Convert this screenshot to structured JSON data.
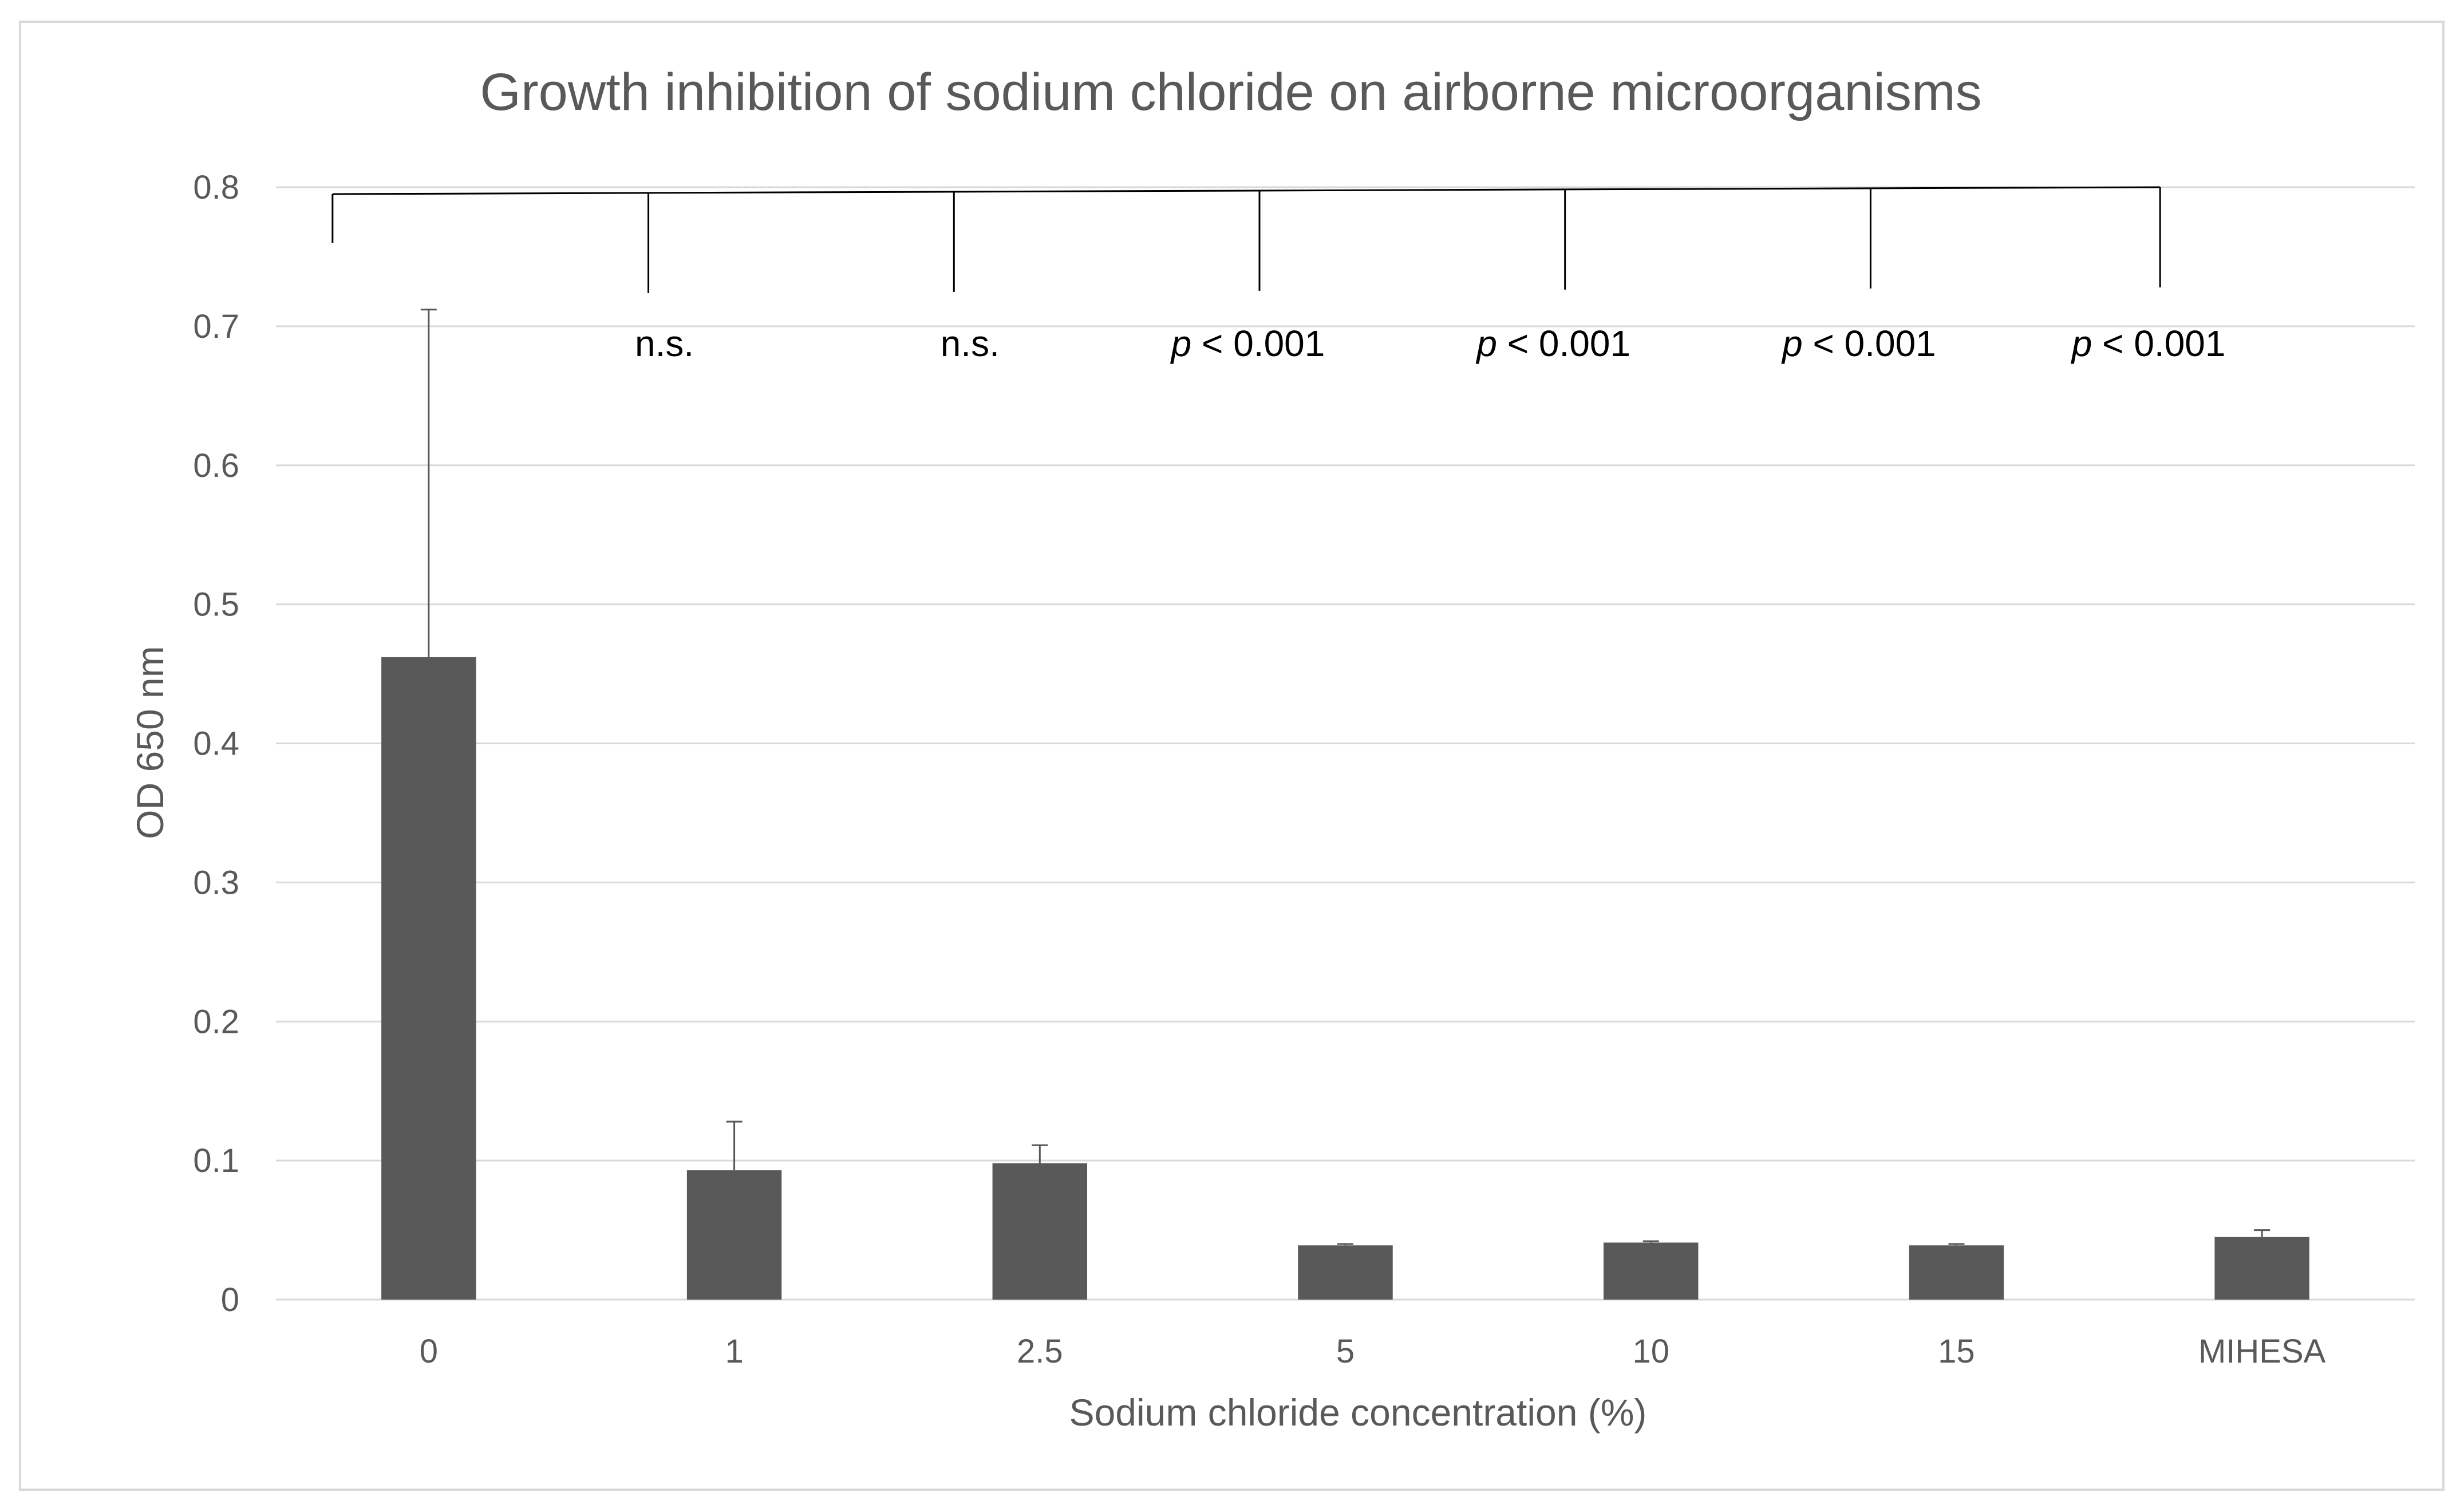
{
  "chart_data": {
    "type": "bar",
    "title": "Growth inhibition of sodium chloride on airborne microorganisms",
    "xlabel": "Sodium chloride concentration (%)",
    "ylabel": "OD 650 nm",
    "categories": [
      "0",
      "1",
      "2.5",
      "5",
      "10",
      "15",
      "MIHESA"
    ],
    "values": [
      0.462,
      0.093,
      0.098,
      0.039,
      0.041,
      0.039,
      0.045
    ],
    "error_plus": [
      0.25,
      0.035,
      0.013,
      0.001,
      0.001,
      0.001,
      0.005
    ],
    "ylim": [
      0,
      0.8
    ],
    "yticks": [
      "0",
      "0.1",
      "0.2",
      "0.3",
      "0.4",
      "0.5",
      "0.6",
      "0.7",
      "0.8"
    ],
    "ytick_values": [
      0,
      0.1,
      0.2,
      0.3,
      0.4,
      0.5,
      0.6,
      0.7,
      0.8
    ],
    "grid": true,
    "bar_color": "#595959",
    "grid_color": "#d9d9d9",
    "comparison_bracket": {
      "reference": "0",
      "annotations": [
        {
          "category": "1",
          "italic": "",
          "text": "n.s."
        },
        {
          "category": "2.5",
          "italic": "",
          "text": "n.s."
        },
        {
          "category": "5",
          "italic": "p",
          "text": " < 0.001"
        },
        {
          "category": "10",
          "italic": "p",
          "text": " < 0.001"
        },
        {
          "category": "15",
          "italic": "p",
          "text": " < 0.001"
        },
        {
          "category": "MIHESA",
          "italic": "p",
          "text": " < 0.001"
        }
      ]
    }
  }
}
